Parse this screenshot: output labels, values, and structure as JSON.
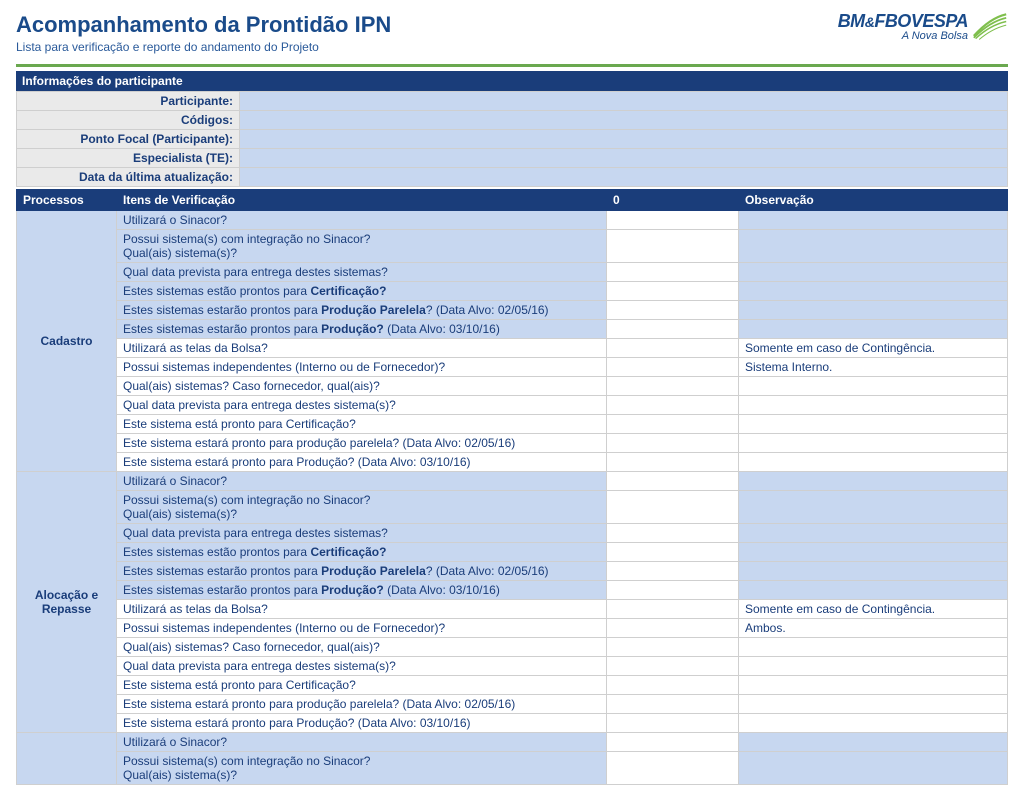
{
  "title": "Acompanhamento da Prontidão IPN",
  "subtitle": "Lista para verificação e reporte do andamento do Projeto",
  "logo": {
    "brand_prefix": "BM",
    "brand_amp": "&",
    "brand_mid": "F",
    "brand_suffix": "BOVESPA",
    "tagline": "A Nova Bolsa"
  },
  "colors": {
    "header_blue": "#1a3d7a",
    "title_blue": "#1a4b8a",
    "light_blue": "#c7d7f0",
    "label_gray": "#eaeaea",
    "rule_green": "#6aa84f",
    "logo_green": "#7fbf4d",
    "border_gray": "#cfcfcf"
  },
  "section_info_title": "Informações do participante",
  "info_fields": [
    {
      "label": "Participante:",
      "value": ""
    },
    {
      "label": "Códigos:",
      "value": ""
    },
    {
      "label": "Ponto Focal (Participante):",
      "value": ""
    },
    {
      "label": "Especialista (TE):",
      "value": ""
    },
    {
      "label": "Data da última atualização:",
      "value": ""
    }
  ],
  "grid_headers": {
    "process": "Processos",
    "item": "Itens de Verificação",
    "answer": "0",
    "obs": "Observação"
  },
  "verification_items_schema": "13 rows per process; column 'highlight' = alt|plain controls item & obs background",
  "verification_items": [
    {
      "idx": 0,
      "highlight": "alt",
      "text_html": "Utilizará o Sinacor?"
    },
    {
      "idx": 1,
      "highlight": "alt",
      "text_html": "Possui sistema(s) com integração no Sinacor?<br>Qual(ais) sistema(s)?"
    },
    {
      "idx": 2,
      "highlight": "alt",
      "text_html": "Qual data prevista para entrega destes sistemas?"
    },
    {
      "idx": 3,
      "highlight": "alt",
      "text_html": "Estes sistemas estão prontos para <b>Certificação?</b>"
    },
    {
      "idx": 4,
      "highlight": "alt",
      "text_html": "Estes sistemas estarão prontos para <b>Produção Parelela</b>? (Data Alvo: 02/05/16)"
    },
    {
      "idx": 5,
      "highlight": "alt",
      "text_html": "Estes sistemas estarão prontos para <b>Produção?</b> (Data Alvo: 03/10/16)"
    },
    {
      "idx": 6,
      "highlight": "plain",
      "text_html": "Utilizará as telas da Bolsa?"
    },
    {
      "idx": 7,
      "highlight": "plain",
      "text_html": "Possui sistemas independentes (Interno ou de Fornecedor)?"
    },
    {
      "idx": 8,
      "highlight": "plain",
      "text_html": "Qual(ais) sistemas? Caso fornecedor, qual(ais)?"
    },
    {
      "idx": 9,
      "highlight": "plain",
      "text_html": "Qual data prevista para entrega destes sistema(s)?"
    },
    {
      "idx": 10,
      "highlight": "plain",
      "text_html": "Este sistema está pronto para Certificação?"
    },
    {
      "idx": 11,
      "highlight": "plain",
      "text_html": "Este sistema estará pronto para produção parelela? (Data Alvo: 02/05/16)"
    },
    {
      "idx": 12,
      "highlight": "plain",
      "text_html": "Este sistema estará pronto para Produção? (Data Alvo: 03/10/16)"
    }
  ],
  "processes": [
    {
      "name": "Cadastro",
      "rowspan": 13,
      "obs": {
        "6": "Somente em caso de Contingência.",
        "7": "Sistema Interno."
      }
    },
    {
      "name": "Alocação e Repasse",
      "rowspan": 13,
      "obs": {
        "6": "Somente em caso de Contingência.",
        "7": "Ambos."
      }
    },
    {
      "name": "",
      "rowspan": 2,
      "partial_rows": [
        0,
        1
      ],
      "obs": {}
    }
  ]
}
